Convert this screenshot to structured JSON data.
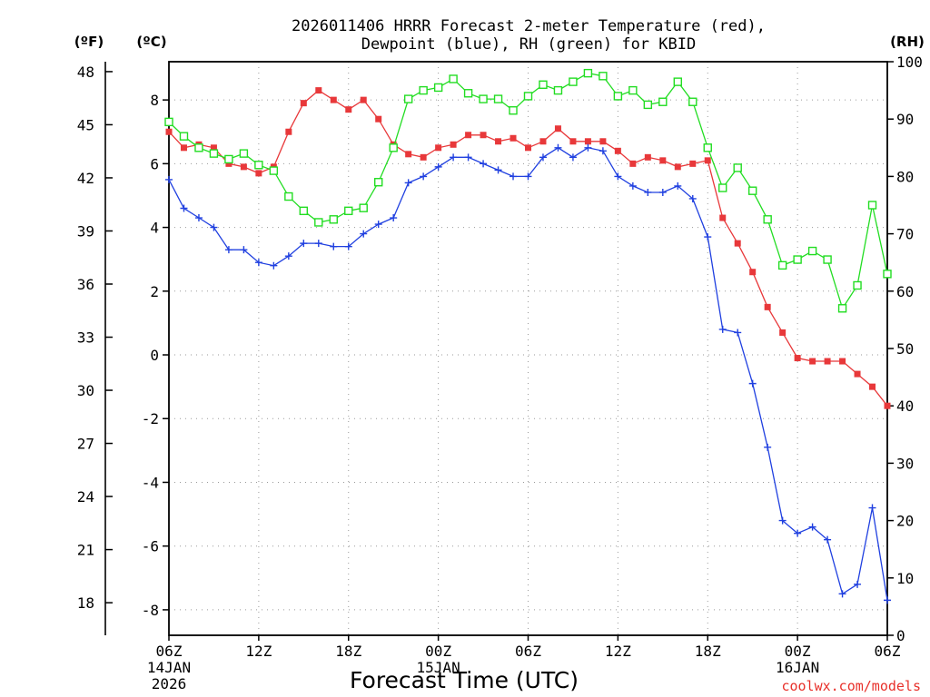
{
  "chart_data": {
    "type": "line",
    "title_lines": [
      "2026011406 HRRR Forecast 2-meter Temperature (red),",
      "Dewpoint (blue), RH (green) for KBID"
    ],
    "xlabel": "Forecast Time (UTC)",
    "credit": "coolwx.com/models",
    "unit_labels": {
      "f": "(ºF)",
      "c": "(ºC)",
      "rh": "(RH)"
    },
    "x_range_hours": [
      0,
      48
    ],
    "y_c_range": [
      -8.8,
      9.2
    ],
    "y_rh_range": [
      0,
      100
    ],
    "x_ticks": [
      {
        "hour": 0,
        "label": "06Z",
        "sub": [
          "14JAN",
          "2026"
        ]
      },
      {
        "hour": 6,
        "label": "12Z",
        "sub": []
      },
      {
        "hour": 12,
        "label": "18Z",
        "sub": []
      },
      {
        "hour": 18,
        "label": "00Z",
        "sub": [
          "15JAN"
        ]
      },
      {
        "hour": 24,
        "label": "06Z",
        "sub": []
      },
      {
        "hour": 30,
        "label": "12Z",
        "sub": []
      },
      {
        "hour": 36,
        "label": "18Z",
        "sub": []
      },
      {
        "hour": 42,
        "label": "00Z",
        "sub": [
          "16JAN"
        ]
      },
      {
        "hour": 48,
        "label": "06Z",
        "sub": []
      }
    ],
    "y_c_ticks": [
      "8",
      "6",
      "4",
      "2",
      "0",
      "-2",
      "-4",
      "-6",
      "-8"
    ],
    "y_f_ticks": [
      "48",
      "45",
      "42",
      "39",
      "36",
      "33",
      "30",
      "27",
      "24",
      "21",
      "18"
    ],
    "y_rh_ticks": [
      "100",
      "90",
      "80",
      "70",
      "60",
      "50",
      "40",
      "30",
      "20",
      "10",
      "0"
    ],
    "series": [
      {
        "name": "Temperature",
        "unit": "C",
        "color": "#e8383a",
        "marker": "filled-square",
        "values": [
          7.0,
          6.5,
          6.6,
          6.5,
          6.0,
          5.9,
          5.7,
          5.9,
          7.0,
          7.9,
          8.3,
          8.0,
          7.7,
          8.0,
          7.4,
          6.6,
          6.3,
          6.2,
          6.5,
          6.6,
          6.9,
          6.9,
          6.7,
          6.8,
          6.5,
          6.7,
          7.1,
          6.7,
          6.7,
          6.7,
          6.4,
          6.0,
          6.2,
          6.1,
          5.9,
          6.0,
          6.1,
          4.3,
          3.5,
          2.6,
          1.5,
          0.7,
          -0.1,
          -0.2,
          -0.2,
          -0.2,
          -0.6,
          -1.0,
          -1.6
        ]
      },
      {
        "name": "Dewpoint",
        "unit": "C",
        "color": "#2040e0",
        "marker": "plus",
        "values": [
          5.5,
          4.6,
          4.3,
          4.0,
          3.3,
          3.3,
          2.9,
          2.8,
          3.1,
          3.5,
          3.5,
          3.4,
          3.4,
          3.8,
          4.1,
          4.3,
          5.4,
          5.6,
          5.9,
          6.2,
          6.2,
          6.0,
          5.8,
          5.6,
          5.6,
          6.2,
          6.5,
          6.2,
          6.5,
          6.4,
          5.6,
          5.3,
          5.1,
          5.1,
          5.3,
          4.9,
          3.7,
          0.8,
          0.7,
          -0.9,
          -2.9,
          -5.2,
          -5.6,
          -5.4,
          -5.8,
          -7.5,
          -7.2,
          -4.8,
          -7.7
        ]
      },
      {
        "name": "RH",
        "unit": "%",
        "color": "#22dd22",
        "marker": "open-square",
        "values": [
          89.5,
          87.0,
          85.0,
          84.0,
          83.0,
          84.0,
          82.0,
          81.0,
          76.5,
          74.0,
          72.0,
          72.5,
          74.0,
          74.5,
          79.0,
          85.0,
          93.5,
          95.0,
          95.5,
          97.0,
          94.5,
          93.5,
          93.5,
          91.5,
          94.0,
          96.0,
          95.0,
          96.5,
          98.0,
          97.5,
          94.0,
          95.0,
          92.5,
          93.0,
          96.5,
          93.0,
          85.0,
          78.0,
          81.5,
          77.5,
          72.5,
          64.5,
          65.5,
          67.0,
          65.5,
          57.0,
          61.0,
          75.0,
          63.0
        ]
      }
    ]
  }
}
